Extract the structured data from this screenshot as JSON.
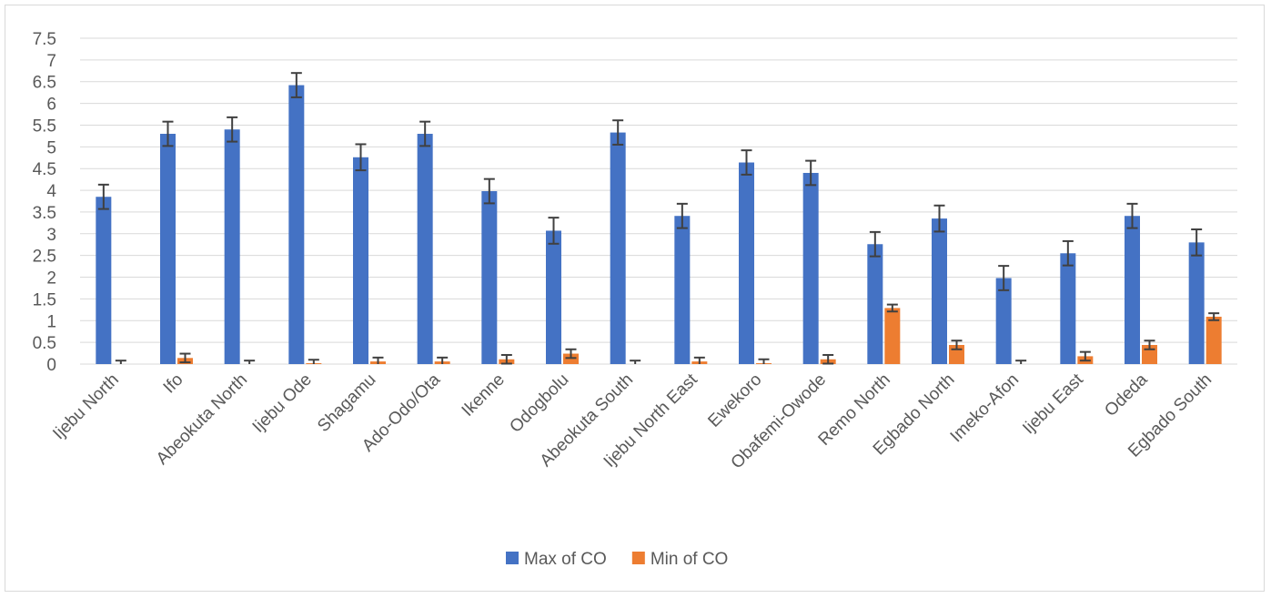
{
  "chart_data": {
    "type": "bar",
    "categories": [
      "Ijebu North",
      "Ifo",
      "Abeokuta North",
      "Ijebu Ode",
      "Shagamu",
      "Ado-Odo/Ota",
      "Ikenne",
      "Odogbolu",
      "Abeokuta South",
      "Ijebu North East",
      "Ewekoro",
      "Obafemi-Owode",
      "Remo North",
      "Egbado North",
      "Imeko-Afon",
      "Ijebu East",
      "Odeda",
      "Egbado South"
    ],
    "series": [
      {
        "name": "Max of CO",
        "color": "#4472c4",
        "values": [
          3.85,
          5.3,
          5.4,
          6.42,
          4.76,
          5.3,
          3.98,
          3.07,
          5.33,
          3.41,
          4.64,
          4.4,
          2.76,
          3.35,
          1.98,
          2.55,
          3.41,
          2.8
        ],
        "error": [
          0.28,
          0.28,
          0.28,
          0.28,
          0.3,
          0.28,
          0.28,
          0.3,
          0.28,
          0.28,
          0.28,
          0.28,
          0.28,
          0.3,
          0.28,
          0.28,
          0.28,
          0.3
        ]
      },
      {
        "name": "Min of CO",
        "color": "#ed7d31",
        "values": [
          0.0,
          0.14,
          0.0,
          0.02,
          0.06,
          0.06,
          0.11,
          0.24,
          0.0,
          0.06,
          0.02,
          0.11,
          1.29,
          0.44,
          0.0,
          0.18,
          0.44,
          1.09
        ],
        "error": [
          0.08,
          0.1,
          0.08,
          0.08,
          0.09,
          0.09,
          0.1,
          0.1,
          0.08,
          0.09,
          0.09,
          0.1,
          0.08,
          0.1,
          0.08,
          0.1,
          0.1,
          0.08
        ]
      }
    ],
    "y_ticks": [
      "0",
      "0.5",
      "1",
      "1.5",
      "2",
      "2.5",
      "3",
      "3.5",
      "4",
      "4.5",
      "5",
      "5.5",
      "6",
      "6.5",
      "7",
      "7.5"
    ],
    "ylim": [
      0,
      7.5
    ],
    "grid": true,
    "legend_position": "bottom",
    "title": "",
    "xlabel": "",
    "ylabel": ""
  }
}
